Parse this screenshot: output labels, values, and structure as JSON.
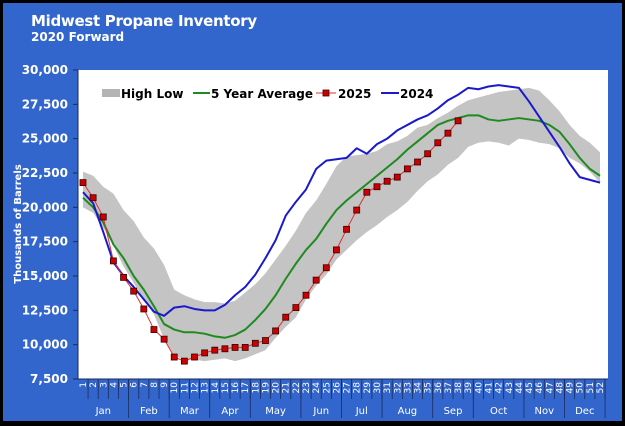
{
  "chart_data": {
    "type": "line",
    "title": "Midwest Propane Inventory",
    "subtitle": "2020 Forward",
    "xlabel": "",
    "ylabel": "Thousands of Barrels",
    "ylim": [
      7500,
      30000
    ],
    "yticks": [
      7500,
      10000,
      12500,
      15000,
      17500,
      20000,
      22500,
      25000,
      27500,
      30000
    ],
    "ytick_labels": [
      "7,500",
      "10,000",
      "12,500",
      "15,000",
      "17,500",
      "20,000",
      "22,500",
      "25,000",
      "27,500",
      "30,000"
    ],
    "x": [
      1,
      2,
      3,
      4,
      5,
      6,
      7,
      8,
      9,
      10,
      11,
      12,
      13,
      14,
      15,
      16,
      17,
      18,
      19,
      20,
      21,
      22,
      23,
      24,
      25,
      26,
      27,
      28,
      29,
      30,
      31,
      32,
      33,
      34,
      35,
      36,
      37,
      38,
      39,
      40,
      41,
      42,
      43,
      44,
      45,
      46,
      47,
      48,
      49,
      50,
      51,
      52
    ],
    "months": [
      {
        "label": "Jan",
        "start": 1,
        "end": 5
      },
      {
        "label": "Feb",
        "start": 6,
        "end": 9
      },
      {
        "label": "Mar",
        "start": 10,
        "end": 13
      },
      {
        "label": "Apr",
        "start": 14,
        "end": 17
      },
      {
        "label": "May",
        "start": 18,
        "end": 22
      },
      {
        "label": "Jun",
        "start": 23,
        "end": 26
      },
      {
        "label": "Jul",
        "start": 27,
        "end": 30
      },
      {
        "label": "Aug",
        "start": 31,
        "end": 35
      },
      {
        "label": "Sep",
        "start": 36,
        "end": 39
      },
      {
        "label": "Oct",
        "start": 40,
        "end": 44
      },
      {
        "label": "Nov",
        "start": 45,
        "end": 48
      },
      {
        "label": "Dec",
        "start": 49,
        "end": 52
      }
    ],
    "legend_position": "top-left",
    "grid": false,
    "series": [
      {
        "name": "High Low",
        "kind": "band",
        "color": "#c0c0c0",
        "high": [
          22600,
          22300,
          21500,
          21000,
          19800,
          19000,
          17800,
          17000,
          15800,
          14000,
          13600,
          13300,
          13100,
          13100,
          13000,
          13200,
          13800,
          14400,
          15200,
          16200,
          17200,
          18300,
          19600,
          20500,
          21700,
          23000,
          23700,
          23800,
          23900,
          24100,
          24600,
          24800,
          25200,
          25800,
          26000,
          26500,
          26900,
          27400,
          27800,
          28000,
          28200,
          28400,
          28500,
          28600,
          28700,
          28500,
          27800,
          27000,
          26000,
          25200,
          24700,
          24000
        ],
        "low": [
          20000,
          19600,
          18500,
          17200,
          15700,
          14500,
          13300,
          12200,
          10400,
          9200,
          8900,
          8900,
          8800,
          8900,
          9000,
          8800,
          9000,
          9300,
          9600,
          10500,
          11300,
          12000,
          13300,
          14300,
          15100,
          16200,
          16900,
          17600,
          18200,
          18700,
          19300,
          19800,
          20400,
          21200,
          21900,
          22400,
          23100,
          23600,
          24400,
          24700,
          24800,
          24700,
          24500,
          25000,
          24900,
          24700,
          24600,
          24300,
          23600,
          23200,
          22600,
          21800
        ]
      },
      {
        "name": "5 Year Average",
        "kind": "line",
        "color": "#1f8a1f",
        "values": [
          20700,
          20000,
          18900,
          17300,
          16300,
          15000,
          14000,
          12800,
          11500,
          11100,
          10900,
          10900,
          10800,
          10600,
          10500,
          10700,
          11100,
          11800,
          12600,
          13600,
          14800,
          15900,
          16900,
          17700,
          18800,
          19800,
          20500,
          21100,
          21700,
          22300,
          22900,
          23500,
          24200,
          24800,
          25400,
          26000,
          26300,
          26500,
          26700,
          26700,
          26400,
          26300,
          26400,
          26500,
          26400,
          26300,
          26000,
          25500,
          24600,
          23600,
          22800,
          22300
        ]
      },
      {
        "name": "2025",
        "kind": "line-marker",
        "color": "#e03030",
        "marker_color": "#cc0000",
        "values": [
          21800,
          20700,
          19300,
          16100,
          14900,
          13900,
          12600,
          11100,
          10400,
          9100,
          8800,
          9100,
          9400,
          9600,
          9700,
          9800,
          9800,
          10100,
          10300,
          11000,
          12000,
          12700,
          13600,
          14700,
          15600,
          16900,
          18400,
          19800,
          21100,
          21500,
          21900,
          22200,
          22800,
          23300,
          23900,
          24700,
          25400,
          26300
        ]
      },
      {
        "name": "2024",
        "kind": "line",
        "color": "#1a1acc",
        "values": [
          21100,
          20300,
          18200,
          16000,
          15000,
          14200,
          13300,
          12400,
          12100,
          12700,
          12800,
          12600,
          12500,
          12500,
          12900,
          13600,
          14200,
          15100,
          16300,
          17600,
          19400,
          20400,
          21300,
          22800,
          23400,
          23500,
          23600,
          24300,
          23900,
          24600,
          25000,
          25600,
          26000,
          26400,
          26700,
          27200,
          27800,
          28200,
          28700,
          28600,
          28800,
          28900,
          28800,
          28700,
          27700,
          26600,
          25500,
          24400,
          23200,
          22200,
          22000,
          21800
        ]
      }
    ]
  }
}
